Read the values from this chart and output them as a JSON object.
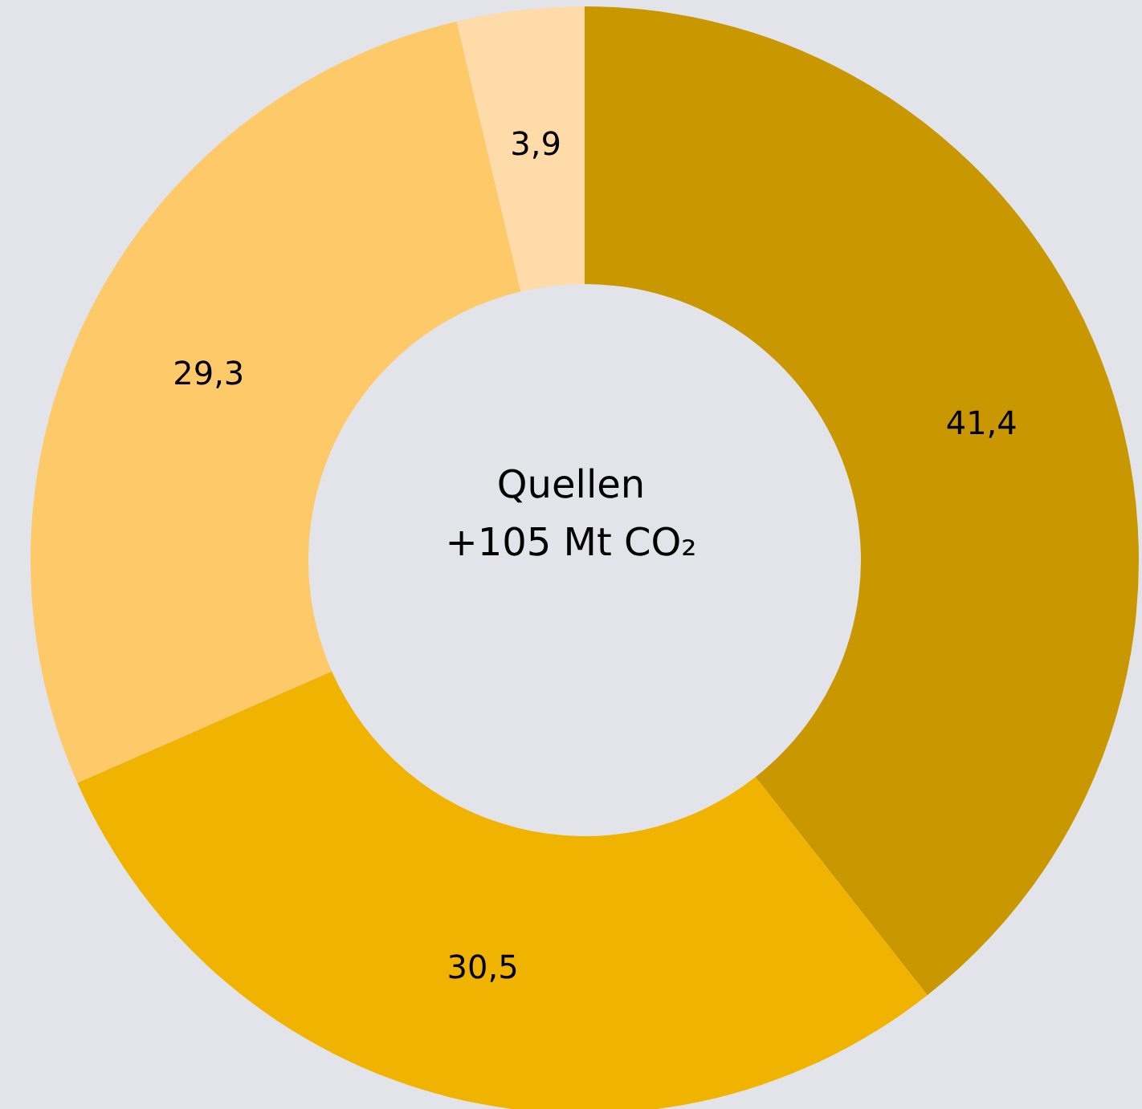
{
  "chart_data": {
    "type": "donut",
    "title": "Quellen",
    "subtitle": "+105 Mt CO₂",
    "categories": [
      null,
      null,
      null,
      null
    ],
    "values": [
      41.4,
      30.5,
      29.3,
      3.9
    ],
    "colors": [
      "#c99700",
      "#f0b400",
      "#fec968",
      "#fedba8"
    ],
    "value_labels": [
      "41,4",
      "30,5",
      "29,3",
      "3,9"
    ]
  }
}
